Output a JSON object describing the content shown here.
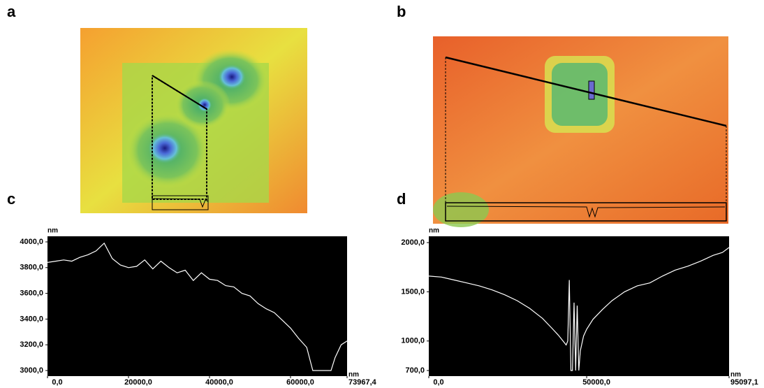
{
  "figure": {
    "panel_labels": [
      "a",
      "b",
      "c",
      "d"
    ]
  },
  "chart_data": [
    {
      "type": "line",
      "xlabel": "nm",
      "ylabel": "nm",
      "background": "#000000",
      "x": [
        0,
        2000,
        4000,
        6000,
        8000,
        10000,
        12000,
        14000,
        16000,
        18000,
        20000,
        22000,
        24000,
        26000,
        28000,
        30000,
        32000,
        34000,
        36000,
        38000,
        40000,
        42000,
        44000,
        46000,
        48000,
        50000,
        52000,
        54000,
        56000,
        58000,
        60000,
        62000,
        64000,
        65500,
        68000,
        70000,
        71000,
        72500,
        73967.4
      ],
      "series": [
        {
          "color": "#ffffff",
          "values": [
            3840,
            3850,
            3860,
            3850,
            3880,
            3900,
            3930,
            3990,
            3870,
            3820,
            3800,
            3810,
            3860,
            3790,
            3850,
            3800,
            3760,
            3780,
            3700,
            3760,
            3710,
            3700,
            3660,
            3650,
            3600,
            3580,
            3520,
            3480,
            3450,
            3390,
            3330,
            3250,
            3180,
            3000,
            3000,
            3000,
            3100,
            3200,
            3230
          ]
        }
      ],
      "xlim": [
        0,
        73967.4
      ],
      "ylim": [
        3000,
        4000
      ],
      "xticks": [
        {
          "value": 0,
          "label": "0,0"
        },
        {
          "value": 20000,
          "label": "20000,0"
        },
        {
          "value": 40000,
          "label": "40000,0"
        },
        {
          "value": 60000,
          "label": "60000,0"
        },
        {
          "value": 73967.4,
          "label": "73967,4"
        }
      ],
      "yticks": [
        {
          "value": 3000,
          "label": "3000,0"
        },
        {
          "value": 3200,
          "label": "3200,0"
        },
        {
          "value": 3400,
          "label": "3400,0"
        },
        {
          "value": 3600,
          "label": "3600,0"
        },
        {
          "value": 3800,
          "label": "3800,0"
        },
        {
          "value": 4000,
          "label": "4000,0"
        }
      ]
    },
    {
      "type": "line",
      "xlabel": "nm",
      "ylabel": "nm",
      "background": "#000000",
      "x": [
        0,
        4000,
        8000,
        12000,
        16000,
        20000,
        24000,
        28000,
        32000,
        36000,
        39000,
        41000,
        42500,
        43500,
        44000,
        44500,
        45000,
        45500,
        46000,
        46500,
        47000,
        47500,
        48000,
        49000,
        50000,
        52000,
        55000,
        58000,
        62000,
        66000,
        70000,
        74000,
        78000,
        82000,
        86000,
        90000,
        93000,
        95097.1
      ],
      "series": [
        {
          "color": "#ffffff",
          "values": [
            1660,
            1650,
            1620,
            1590,
            1560,
            1520,
            1470,
            1410,
            1330,
            1230,
            1130,
            1060,
            1000,
            960,
            1000,
            1620,
            700,
            700,
            1390,
            700,
            1360,
            700,
            900,
            1050,
            1120,
            1220,
            1320,
            1410,
            1500,
            1560,
            1590,
            1660,
            1720,
            1760,
            1810,
            1870,
            1900,
            1950
          ]
        }
      ],
      "xlim": [
        0,
        95097.1
      ],
      "ylim": [
        700,
        2000
      ],
      "xticks": [
        {
          "value": 0,
          "label": "0,0"
        },
        {
          "value": 50000,
          "label": "50000,0"
        },
        {
          "value": 95097.1,
          "label": "95097,1"
        }
      ],
      "yticks": [
        {
          "value": 700,
          "label": "700,0"
        },
        {
          "value": 1000,
          "label": "1000,0"
        },
        {
          "value": 1500,
          "label": "1500,0"
        },
        {
          "value": 2000,
          "label": "2000,0"
        }
      ]
    }
  ]
}
